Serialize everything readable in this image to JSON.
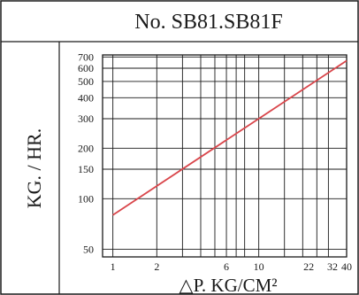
{
  "chart_data": {
    "type": "line",
    "title": "No. SB81.SB81F",
    "xlabel": "△P. KG/CM²",
    "ylabel": "KG. / HR.",
    "x_scale": "log",
    "y_scale": "log",
    "xlim": [
      0.85,
      40
    ],
    "ylim": [
      45,
      720
    ],
    "x_ticks": [
      {
        "value": 1,
        "label": "1"
      },
      {
        "value": 2,
        "label": "2"
      },
      {
        "value": 6,
        "label": "6"
      },
      {
        "value": 10,
        "label": "10"
      },
      {
        "value": 22,
        "label": "22"
      },
      {
        "value": 32,
        "label": "32"
      },
      {
        "value": 40,
        "label": "40"
      }
    ],
    "x_gridlines": [
      1,
      2,
      3,
      4,
      5,
      6,
      7,
      8,
      10,
      15,
      20,
      25,
      30,
      40
    ],
    "y_ticks": [
      50,
      100,
      150,
      200,
      300,
      400,
      500,
      600,
      700
    ],
    "grid": true,
    "legend": "none",
    "series": [
      {
        "color": "#d9464b",
        "x": [
          1,
          40
        ],
        "y": [
          80,
          665
        ]
      }
    ]
  }
}
